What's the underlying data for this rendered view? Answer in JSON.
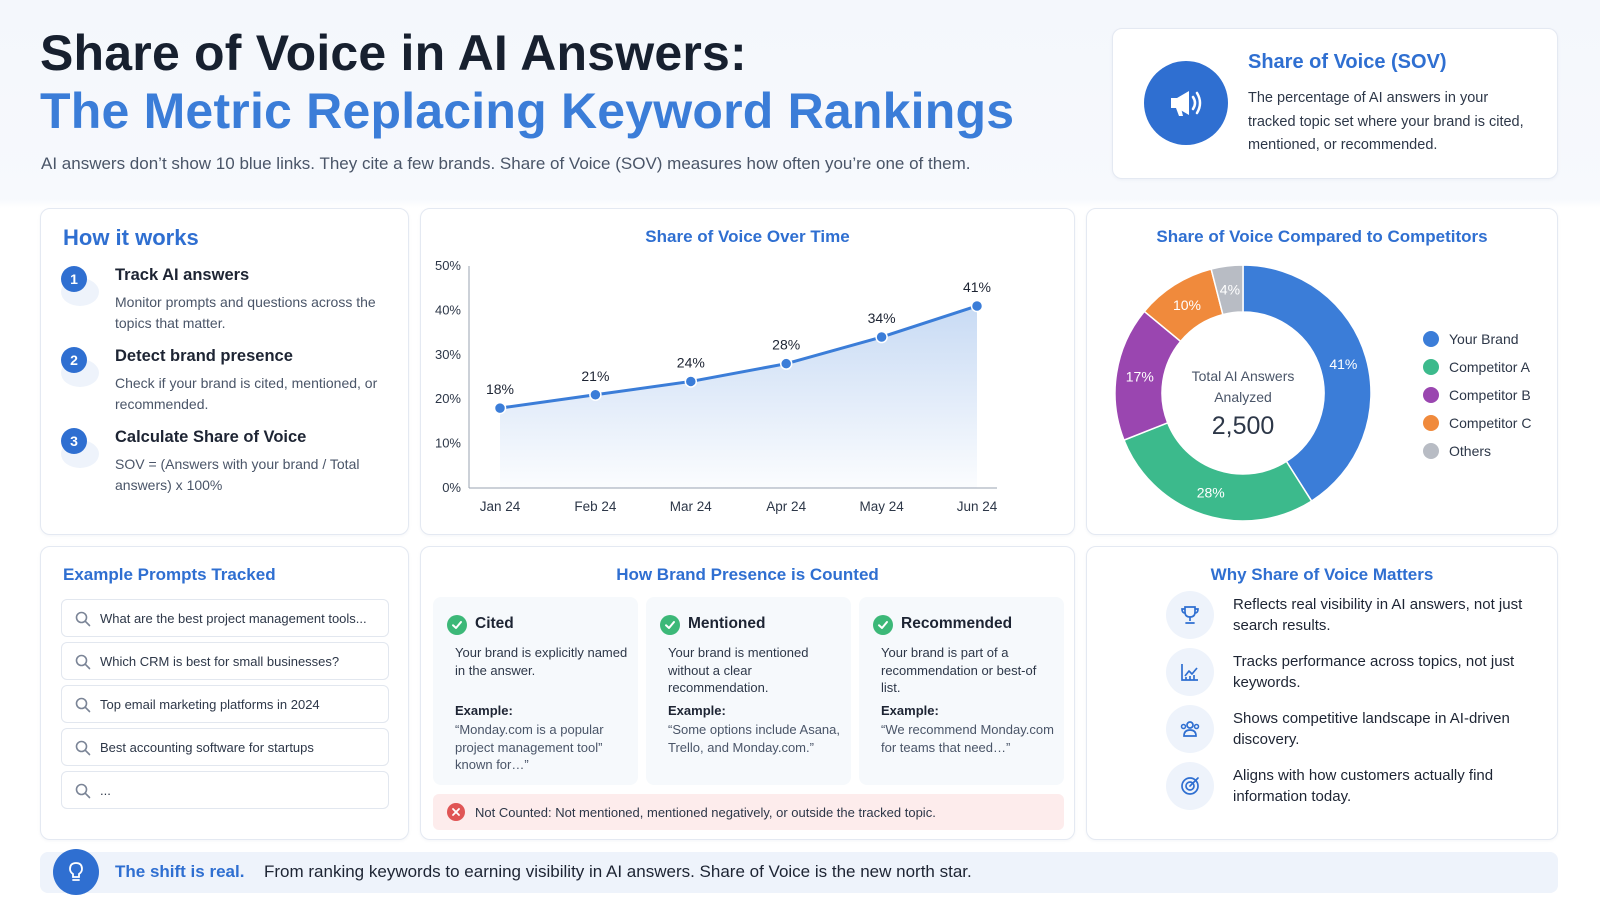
{
  "header": {
    "title_line1": "Share of Voice in AI Answers:",
    "title_line2": "The Metric Replacing Keyword Rankings",
    "subtitle": "AI answers don’t show 10 blue links. They cite a few brands. Share of Voice (SOV) measures how often you’re one of them."
  },
  "sov_card": {
    "icon": "megaphone-icon",
    "title": "Share of Voice (SOV)",
    "description": "The percentage of AI answers in your tracked topic set where your brand is cited, mentioned, or recommended."
  },
  "how_it_works": {
    "title": "How it works",
    "steps": [
      {
        "num": "1",
        "title": "Track AI answers",
        "text": "Monitor prompts and questions across the topics that matter."
      },
      {
        "num": "2",
        "title": "Detect brand presence",
        "text": "Check if your brand is cited, mentioned, or recommended."
      },
      {
        "num": "3",
        "title": "Calculate Share of Voice",
        "text": "SOV = (Answers with your brand / Total answers) x 100%"
      }
    ]
  },
  "chart_data": [
    {
      "type": "line",
      "title": "Share of Voice Over Time",
      "x": [
        "Jan 24",
        "Feb 24",
        "Mar 24",
        "Apr 24",
        "May 24",
        "Jun 24"
      ],
      "series": [
        {
          "values": [
            18,
            21,
            24,
            28,
            34,
            41
          ]
        }
      ],
      "data_labels": [
        "18%",
        "21%",
        "24%",
        "28%",
        "34%",
        "41%"
      ],
      "ylim": [
        0,
        50
      ],
      "yticks": [
        0,
        10,
        20,
        30,
        40,
        50
      ],
      "ytick_labels": [
        "0%",
        "10%",
        "20%",
        "30%",
        "40%",
        "50%"
      ],
      "area_fill": true,
      "grid": false,
      "color": "#3b7dd8"
    },
    {
      "type": "pie",
      "subtype": "donut",
      "title": "Share of Voice Compared to Competitors",
      "center_label": "Total AI Answers Analyzed",
      "center_value": "2,500",
      "slices": [
        {
          "label": "Your Brand",
          "value": 41,
          "display": "41%",
          "color": "#3b7dd8"
        },
        {
          "label": "Competitor A",
          "value": 28,
          "display": "28%",
          "color": "#3cba8c"
        },
        {
          "label": "Competitor B",
          "value": 17,
          "display": "17%",
          "color": "#9a46b0"
        },
        {
          "label": "Competitor C",
          "value": 10,
          "display": "10%",
          "color": "#f08a3c"
        },
        {
          "label": "Others",
          "value": 4,
          "display": "4%",
          "color": "#b8bcc4"
        }
      ],
      "legend_position": "right"
    }
  ],
  "example_prompts": {
    "title": "Example Prompts Tracked",
    "items": [
      "What are the best project management tools...",
      "Which CRM is best for small businesses?",
      "Top email marketing platforms in 2024",
      "Best accounting software for startups",
      "..."
    ]
  },
  "brand_presence": {
    "title": "How Brand Presence is Counted",
    "columns": [
      {
        "title": "Cited",
        "desc": "Your brand is explicitly named in the answer.",
        "example_label": "Example:",
        "example": "“Monday.com is a popular project management tool” known for…”"
      },
      {
        "title": "Mentioned",
        "desc": "Your brand is mentioned without a clear recommendation.",
        "example_label": "Example:",
        "example": "“Some options include Asana, Trello, and Monday.com.”"
      },
      {
        "title": "Recommended",
        "desc": "Your brand is part of a recommendation or best-of list.",
        "example_label": "Example:",
        "example": "“We recommend Monday.com for teams that need…”"
      }
    ],
    "not_counted": "Not Counted: Not mentioned, mentioned negatively, or outside the tracked topic."
  },
  "why_matters": {
    "title": "Why Share of Voice Matters",
    "items": [
      {
        "icon": "trophy-icon",
        "text": "Reflects real visibility in AI answers, not just search results."
      },
      {
        "icon": "chart-icon",
        "text": "Tracks performance across topics, not just keywords."
      },
      {
        "icon": "people-icon",
        "text": "Shows competitive landscape in AI-driven discovery."
      },
      {
        "icon": "target-icon",
        "text": "Aligns with how customers actually find information today."
      }
    ]
  },
  "footer": {
    "icon": "lightbulb-icon",
    "strong": "The shift is real.",
    "text": "From ranking keywords to earning visibility in AI answers. Share of Voice is the new north star."
  }
}
